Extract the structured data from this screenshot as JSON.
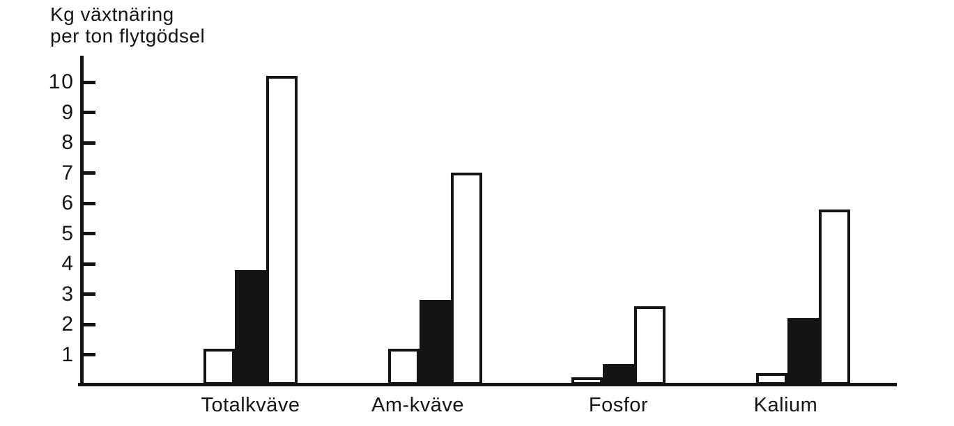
{
  "chart_data": {
    "type": "bar",
    "title": "",
    "y_axis_title_lines": [
      "Kg växtnäring",
      "per ton flytgödsel"
    ],
    "xlabel": "",
    "ylabel": "Kg växtnäring per ton flytgödsel",
    "categories": [
      "Totalkväve",
      "Am-kväve",
      "Fosfor",
      "Kalium"
    ],
    "series": [
      {
        "name": "series-1-white-outlined",
        "fill": "#ffffff",
        "outline": "#141414",
        "values": [
          1.2,
          1.2,
          0.25,
          0.4
        ]
      },
      {
        "name": "series-2-solid-black",
        "fill": "#141414",
        "outline": "#141414",
        "values": [
          3.8,
          2.8,
          0.7,
          2.2
        ]
      },
      {
        "name": "series-3-white-outlined",
        "fill": "#ffffff",
        "outline": "#141414",
        "values": [
          10.2,
          7.0,
          2.6,
          5.8
        ]
      }
    ],
    "y_ticks": [
      1,
      2,
      3,
      4,
      5,
      6,
      7,
      8,
      9,
      10
    ],
    "ylim": [
      0,
      10.8
    ],
    "grid": false,
    "legend": "none"
  },
  "colors": {
    "ink": "#141414",
    "background": "#ffffff"
  }
}
